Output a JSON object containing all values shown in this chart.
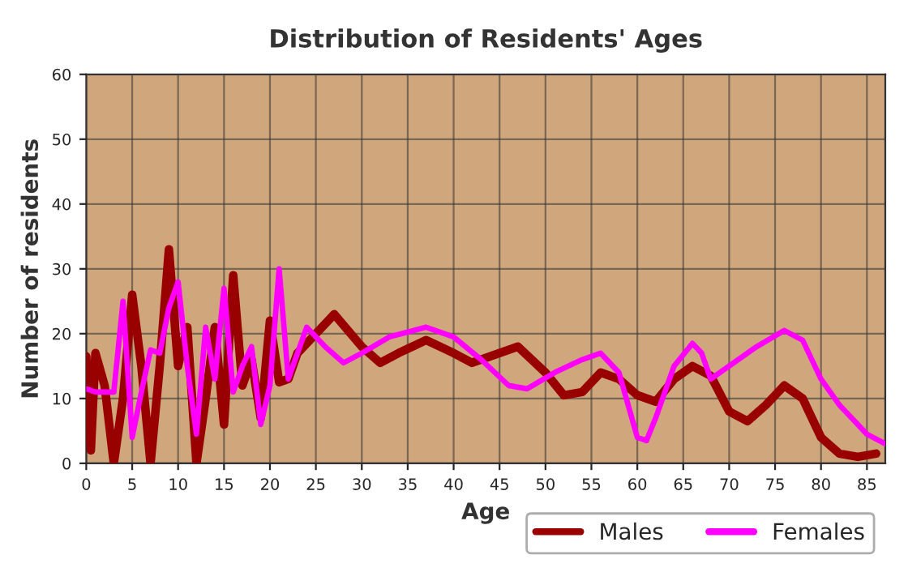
{
  "chart_data": {
    "type": "line",
    "title": "Distribution of Residents' Ages",
    "xlabel": "Age",
    "ylabel": "Number of residents",
    "xlim": [
      0,
      87
    ],
    "xticks": [
      0,
      5,
      10,
      15,
      20,
      25,
      30,
      35,
      40,
      45,
      50,
      55,
      60,
      65,
      70,
      75,
      80,
      85
    ],
    "ylim": [
      0,
      60
    ],
    "yticks": [
      0,
      10,
      20,
      30,
      40,
      50,
      60
    ],
    "grid": true,
    "legend": "bottom right",
    "series": [
      {
        "name": "Males",
        "color": "#990000",
        "x": [
          0,
          0.5,
          1,
          2,
          3,
          4,
          5,
          6,
          7,
          8,
          9,
          10,
          11,
          12,
          13,
          14,
          15,
          16,
          17,
          18,
          19,
          20,
          21,
          22,
          23,
          25,
          27,
          30,
          32,
          34,
          37,
          40,
          42,
          44,
          47,
          50,
          52,
          54,
          56,
          58,
          60,
          62,
          64,
          66,
          68,
          70,
          72,
          74,
          76,
          78,
          80,
          82,
          84,
          86
        ],
        "values": [
          16.5,
          2,
          17,
          12,
          0,
          10,
          26,
          15,
          0,
          15,
          33,
          15,
          21,
          0,
          10,
          21,
          6,
          29,
          12,
          16,
          7,
          22,
          12.5,
          13,
          17,
          20,
          23,
          18,
          15.5,
          17,
          19,
          17,
          15.5,
          16.5,
          18,
          14,
          10.5,
          11,
          14,
          13,
          10.5,
          9.5,
          13,
          15,
          13.5,
          8,
          6.5,
          9,
          12,
          10,
          4,
          1.5,
          1,
          1.5
        ]
      },
      {
        "name": "Females",
        "color": "#ff00ff",
        "x": [
          0,
          1,
          2,
          3,
          4,
          5,
          6,
          7,
          8,
          9,
          10,
          11,
          12,
          13,
          14,
          15,
          16,
          17,
          18,
          19,
          20,
          21,
          22,
          24,
          26,
          28,
          30,
          33,
          37,
          40,
          43,
          46,
          48,
          51,
          54,
          56,
          58,
          60,
          61,
          62,
          64,
          66,
          67,
          68,
          70,
          73,
          76,
          78,
          80,
          82,
          85,
          87
        ],
        "values": [
          11.5,
          11,
          11,
          11,
          25,
          4,
          11,
          17.5,
          17,
          24,
          28,
          15,
          4.5,
          21,
          13,
          27,
          11,
          15,
          18,
          6,
          12,
          30,
          13,
          21,
          18,
          15.5,
          17,
          19.5,
          21,
          19.5,
          16,
          12,
          11.5,
          14,
          16,
          17,
          14,
          4,
          3.5,
          7,
          15,
          18.5,
          17,
          13,
          15,
          18,
          20.5,
          19,
          13,
          9,
          4.5,
          3
        ]
      }
    ]
  }
}
